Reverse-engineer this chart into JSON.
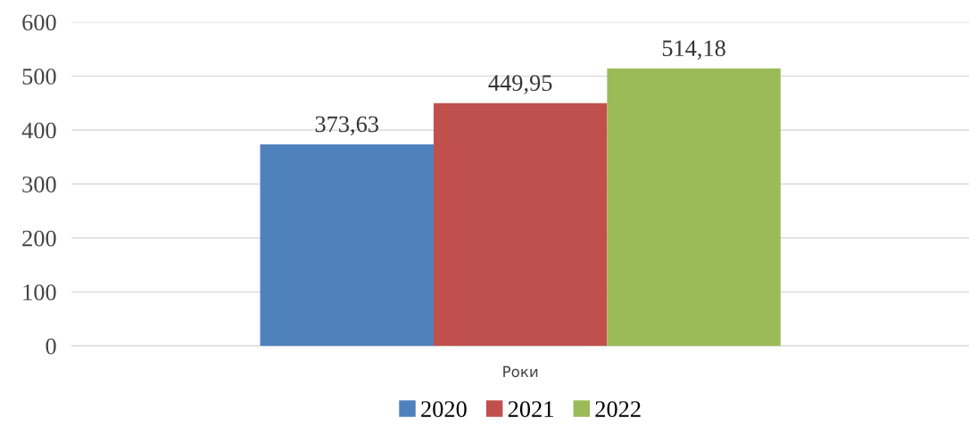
{
  "chart_data": {
    "type": "bar",
    "categories": [
      "Роки"
    ],
    "series": [
      {
        "name": "2020",
        "color": "#4f81bd",
        "values": [
          373.63
        ],
        "value_labels": [
          "373,63"
        ]
      },
      {
        "name": "2021",
        "color": "#c0504d",
        "values": [
          449.95
        ],
        "value_labels": [
          "449,95"
        ]
      },
      {
        "name": "2022",
        "color": "#9bbb59",
        "values": [
          514.18
        ],
        "value_labels": [
          "514,18"
        ]
      }
    ],
    "ylim": [
      0,
      600
    ],
    "yticks": [
      0,
      100,
      200,
      300,
      400,
      500,
      600
    ],
    "grid": "y",
    "legend": "bottom"
  }
}
